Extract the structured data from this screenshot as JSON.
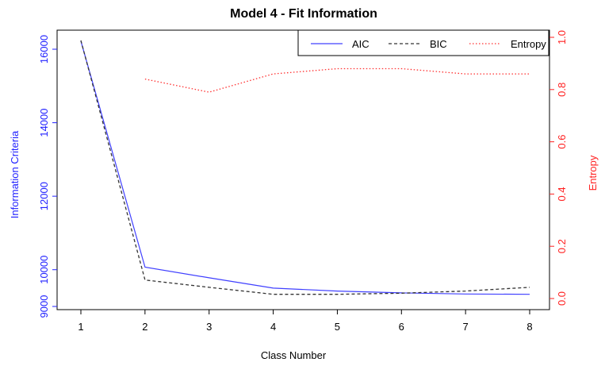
{
  "chart_data": {
    "type": "line",
    "title": "Model 4 - Fit Information",
    "xlabel": "Class Number",
    "ylabel_left": "Information Criteria",
    "ylabel_right": "Entropy",
    "x": [
      1,
      2,
      3,
      4,
      5,
      6,
      7,
      8
    ],
    "xlim": [
      1,
      8
    ],
    "ylim_left": [
      9000,
      16000
    ],
    "ylim_right": [
      0.0,
      1.0
    ],
    "yticks_left": [
      9000,
      10000,
      12000,
      14000,
      16000
    ],
    "yticks_right": [
      "0.0",
      "0.2",
      "0.4",
      "0.6",
      "0.8",
      "1.0"
    ],
    "grid": false,
    "legend_position": "top-right",
    "series": [
      {
        "name": "AIC",
        "axis": "left",
        "color": "#4040ff",
        "style": "solid",
        "values": [
          16220,
          10070,
          9780,
          9500,
          9420,
          9370,
          9340,
          9330
        ]
      },
      {
        "name": "BIC",
        "axis": "left",
        "color": "#333333",
        "style": "dashed",
        "values": [
          16240,
          9720,
          9520,
          9330,
          9330,
          9360,
          9420,
          9520
        ]
      },
      {
        "name": "Entropy",
        "axis": "right",
        "color": "#ff3030",
        "style": "dotted",
        "values": [
          null,
          0.84,
          0.79,
          0.86,
          0.88,
          0.88,
          0.86,
          0.86
        ]
      }
    ]
  }
}
